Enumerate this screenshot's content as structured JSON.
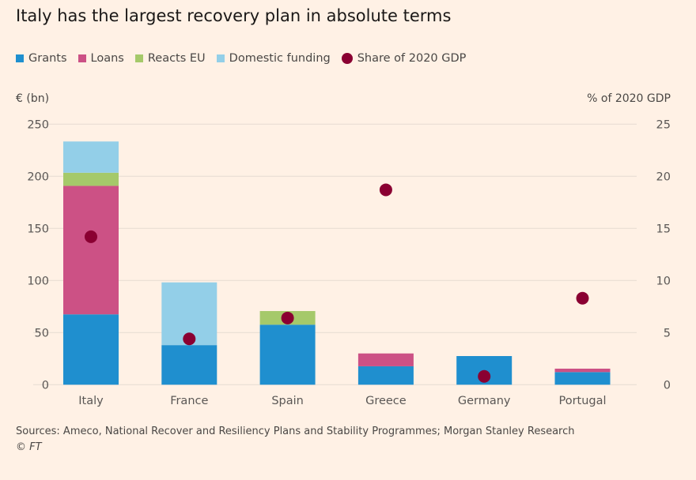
{
  "chart_data": {
    "type": "bar",
    "stacked": true,
    "title": "Italy has the largest recovery plan in absolute terms",
    "ylabel_left": "€ (bn)",
    "ylabel_right": "% of 2020 GDP",
    "ylim_left": [
      0,
      250
    ],
    "ylim_right": [
      0,
      25
    ],
    "yticks_left": [
      0,
      50,
      100,
      150,
      200,
      250
    ],
    "yticks_right": [
      0,
      5,
      10,
      15,
      20,
      25
    ],
    "grid": true,
    "legend_placement": "top-left",
    "categories": [
      "Italy",
      "France",
      "Spain",
      "Greece",
      "Germany",
      "Portugal"
    ],
    "series": [
      {
        "name": "Grants",
        "color": "#1f8fcf",
        "values": [
          67.5,
          38,
          57.6,
          17.7,
          27.5,
          12.1
        ]
      },
      {
        "name": "Loans",
        "color": "#cc5185",
        "values": [
          123.3,
          0,
          0,
          12.3,
          0,
          3.3
        ]
      },
      {
        "name": "Reacts EU",
        "color": "#a5c96a",
        "values": [
          12.6,
          0,
          13.1,
          0,
          0,
          0
        ]
      },
      {
        "name": "Domestic funding",
        "color": "#93cfe8",
        "values": [
          30,
          60.2,
          0,
          0,
          0,
          0
        ]
      }
    ],
    "dot_series": {
      "name": "Share of 2020 GDP",
      "color": "#8a0032",
      "axis": "right",
      "values": [
        14.2,
        4.4,
        6.4,
        18.7,
        0.8,
        8.3
      ]
    }
  },
  "footer": {
    "sources": "Sources: Ameco, National Recover and Resiliency Plans and Stability Programmes; Morgan Stanley Research",
    "credit": "© FT"
  }
}
